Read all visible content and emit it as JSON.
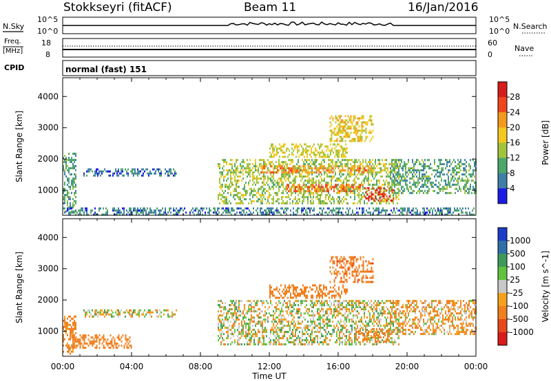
{
  "header": {
    "station": "Stokkseyri (fitACF)",
    "beam": "Beam 11",
    "date": "16/Jan/2016"
  },
  "top_panels": {
    "nsky_label": "N.Sky",
    "nsky_ticks_left": [
      "10^5",
      "10^0"
    ],
    "nsky_ticks_right": [
      "10^5",
      "10^0"
    ],
    "nsearch_label": "N.Search",
    "freq_label_line1": "Freq.",
    "freq_label_line2": "[MHz]",
    "freq_ticks": [
      "18",
      "8"
    ],
    "nave_label": "Nave",
    "nave_ticks": [
      "60",
      "0"
    ],
    "cpid_label": "CPID",
    "cpid_value": "normal (fast) 151"
  },
  "chart_data": [
    {
      "type": "heatmap",
      "panel": "power",
      "ylabel": "Slant Range [km]",
      "xlabel": "",
      "ylim": [
        200,
        4600
      ],
      "y_ticks": [
        1000,
        2000,
        3000,
        4000
      ],
      "colorbar_label": "Power [dB]",
      "colorbar_ticks": [
        "28",
        "24",
        "20",
        "16",
        "12",
        "8",
        "4"
      ],
      "colorbar_colors": [
        "#d81c1c",
        "#f0461e",
        "#f39a1e",
        "#f5c81e",
        "#a2c43c",
        "#4da66a",
        "#3f7fa6",
        "#1c1ce6"
      ],
      "regions": [
        {
          "t0": 0.0,
          "t1": 0.8,
          "r0": 300,
          "r1": 2200,
          "v": 10
        },
        {
          "t0": 1.2,
          "t1": 6.6,
          "r0": 1500,
          "r1": 1700,
          "v": 6
        },
        {
          "t0": 0.0,
          "t1": 24.0,
          "r0": 200,
          "r1": 450,
          "v": 7
        },
        {
          "t0": 9.0,
          "t1": 19.5,
          "r0": 600,
          "r1": 2000,
          "v": 14
        },
        {
          "t0": 11.5,
          "t1": 18.0,
          "r0": 1600,
          "r1": 1800,
          "v": 22
        },
        {
          "t0": 13.0,
          "t1": 17.5,
          "r0": 1000,
          "r1": 1200,
          "v": 24
        },
        {
          "t0": 17.5,
          "t1": 19.2,
          "r0": 700,
          "r1": 1100,
          "v": 28
        },
        {
          "t0": 12.0,
          "t1": 16.5,
          "r0": 2100,
          "r1": 2500,
          "v": 16
        },
        {
          "t0": 15.5,
          "t1": 18.0,
          "r0": 2600,
          "r1": 3400,
          "v": 18
        },
        {
          "t0": 19.0,
          "t1": 24.0,
          "r0": 900,
          "r1": 2000,
          "v": 10
        }
      ]
    },
    {
      "type": "heatmap",
      "panel": "velocity",
      "ylabel": "Slant Range [km]",
      "xlabel": "Time UT",
      "ylim": [
        200,
        4600
      ],
      "y_ticks": [
        1000,
        2000,
        3000,
        4000
      ],
      "x_ticks": [
        "00:00",
        "04:00",
        "08:00",
        "12:00",
        "16:00",
        "20:00",
        "00:00"
      ],
      "colorbar_label": "Velocity [m s^-1]",
      "colorbar_ticks": [
        "1000",
        "500",
        "100",
        "25",
        "-25",
        "-100",
        "-500",
        "-1000"
      ],
      "colorbar_colors": [
        "#1c3cc8",
        "#2f6fa8",
        "#3f9a5a",
        "#61c23f",
        "#c8c8c8",
        "#f5a01e",
        "#f07f1e",
        "#e84a1c",
        "#d81c1c"
      ],
      "regions": [
        {
          "t0": 0.0,
          "t1": 0.8,
          "r0": 300,
          "r1": 1500,
          "v": -200
        },
        {
          "t0": 0.5,
          "t1": 4.0,
          "r0": 500,
          "r1": 900,
          "v": -300
        },
        {
          "t0": 1.2,
          "t1": 6.6,
          "r0": 1500,
          "r1": 1700,
          "v": 0
        },
        {
          "t0": 9.0,
          "t1": 19.5,
          "r0": 600,
          "r1": 2000,
          "v": 0
        },
        {
          "t0": 17.0,
          "t1": 19.0,
          "r0": 700,
          "r1": 1100,
          "v": -200
        },
        {
          "t0": 12.0,
          "t1": 16.5,
          "r0": 2100,
          "r1": 2500,
          "v": -300
        },
        {
          "t0": 15.5,
          "t1": 18.0,
          "r0": 2600,
          "r1": 3400,
          "v": -400
        },
        {
          "t0": 19.0,
          "t1": 24.0,
          "r0": 900,
          "r1": 2000,
          "v": -100
        }
      ]
    }
  ]
}
